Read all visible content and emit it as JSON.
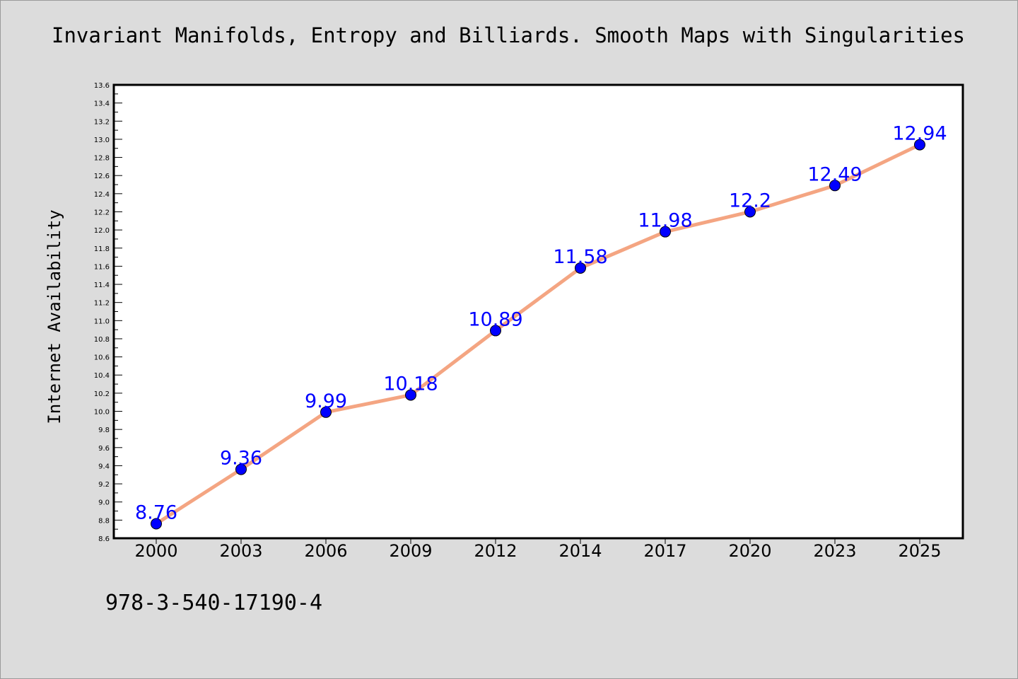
{
  "header": {
    "title": "Invariant Manifolds, Entropy and Billiards. Smooth Maps with Singularities"
  },
  "footer": {
    "isbn": "978-3-540-17190-4"
  },
  "colors": {
    "background": "#dcdcdc",
    "plot_background": "#ffffff",
    "line": "#f4a582",
    "marker": "#0000ff",
    "data_label": "#0000ff"
  },
  "chart_data": {
    "type": "line",
    "title": "Invariant Manifolds, Entropy and Billiards. Smooth Maps with Singularities",
    "xlabel": "",
    "ylabel": "Internet Availability",
    "categories": [
      "2000",
      "2003",
      "2006",
      "2009",
      "2012",
      "2014",
      "2017",
      "2020",
      "2023",
      "2025"
    ],
    "series": [
      {
        "values": [
          8.76,
          9.36,
          9.99,
          10.18,
          10.89,
          11.58,
          11.98,
          12.2,
          12.49,
          12.94
        ],
        "labels": [
          "8.76",
          "9.36",
          "9.99",
          "10.18",
          "10.89",
          "11.58",
          "11.98",
          "12.2",
          "12.49",
          "12.94"
        ]
      }
    ],
    "ylim": [
      8.6,
      13.6
    ],
    "ytick_step": 0.2,
    "grid": false,
    "legend": "none"
  }
}
